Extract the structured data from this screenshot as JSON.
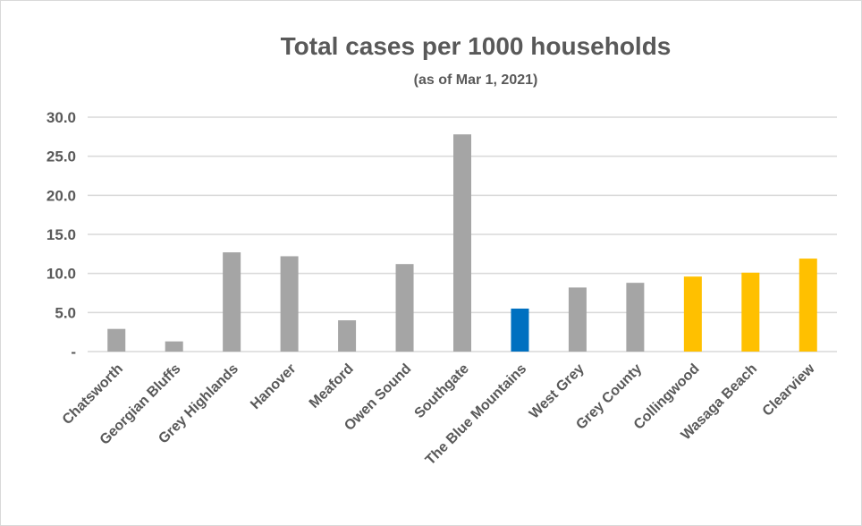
{
  "chart_data": {
    "type": "bar",
    "title": "Total cases per 1000 households",
    "subtitle": "(as of Mar 1, 2021)",
    "xlabel": "",
    "ylabel": "",
    "ylim": [
      0,
      30
    ],
    "yticks": [
      {
        "value": 0,
        "label": "-"
      },
      {
        "value": 5,
        "label": "5.0"
      },
      {
        "value": 10,
        "label": "10.0"
      },
      {
        "value": 15,
        "label": "15.0"
      },
      {
        "value": 20,
        "label": "20.0"
      },
      {
        "value": 25,
        "label": "25.0"
      },
      {
        "value": 30,
        "label": "30.0"
      }
    ],
    "grid": true,
    "legend": "none",
    "categories": [
      "Chatsworth",
      "Georgian Bluffs",
      "Grey Highlands",
      "Hanover",
      "Meaford",
      "Owen Sound",
      "Southgate",
      "The Blue Mountains",
      "West Grey",
      "Grey County",
      "Collingwood",
      "Wasaga Beach",
      "Clearview"
    ],
    "values": [
      2.9,
      1.3,
      12.7,
      12.2,
      4.0,
      11.2,
      27.8,
      5.5,
      8.2,
      8.8,
      9.6,
      10.1,
      11.9
    ],
    "colors": [
      "#a5a5a5",
      "#a5a5a5",
      "#a5a5a5",
      "#a5a5a5",
      "#a5a5a5",
      "#a5a5a5",
      "#a5a5a5",
      "#0070c0",
      "#a5a5a5",
      "#a5a5a5",
      "#ffc000",
      "#ffc000",
      "#ffc000"
    ]
  }
}
